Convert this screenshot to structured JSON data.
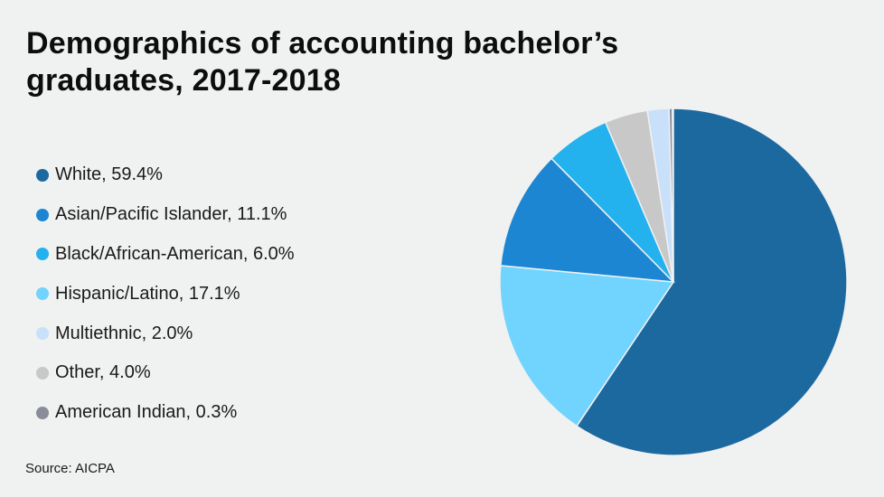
{
  "title_line1": "Demographics of accounting bachelor’s",
  "title_line2": "graduates, 2017-2018",
  "source": "Source: AICPA",
  "legend": [
    {
      "label": "White, 59.4%",
      "color": "#1c69a0"
    },
    {
      "label": "Asian/Pacific Islander, 11.1%",
      "color": "#1d86d3"
    },
    {
      "label": "Black/African-American, 6.0%",
      "color": "#24b2ee"
    },
    {
      "label": "Hispanic/Latino, 17.1%",
      "color": "#70d4fe"
    },
    {
      "label": "Multiethnic, 2.0%",
      "color": "#c8e0f9"
    },
    {
      "label": "Other, 4.0%",
      "color": "#c8c8c9"
    },
    {
      "label": "American Indian, 0.3%",
      "color": "#8a8c9a"
    }
  ],
  "chart_data": {
    "type": "pie",
    "title": "Demographics of accounting bachelor’s graduates, 2017-2018",
    "categories": [
      "White",
      "Asian/Pacific Islander",
      "Black/African-American",
      "Hispanic/Latino",
      "Multiethnic",
      "Other",
      "American Indian"
    ],
    "values": [
      59.4,
      11.1,
      6.0,
      17.1,
      2.0,
      4.0,
      0.3
    ],
    "unit": "%",
    "colors": [
      "#1c69a0",
      "#1d86d3",
      "#24b2ee",
      "#70d4fe",
      "#c8e0f9",
      "#c8c8c9",
      "#8a8c9a"
    ],
    "drawing_order_clockwise_from_top": [
      "White",
      "Hispanic/Latino",
      "Asian/Pacific Islander",
      "Black/African-American",
      "Other",
      "Multiethnic",
      "American Indian"
    ],
    "legend_position": "left",
    "source": "Source: AICPA"
  }
}
